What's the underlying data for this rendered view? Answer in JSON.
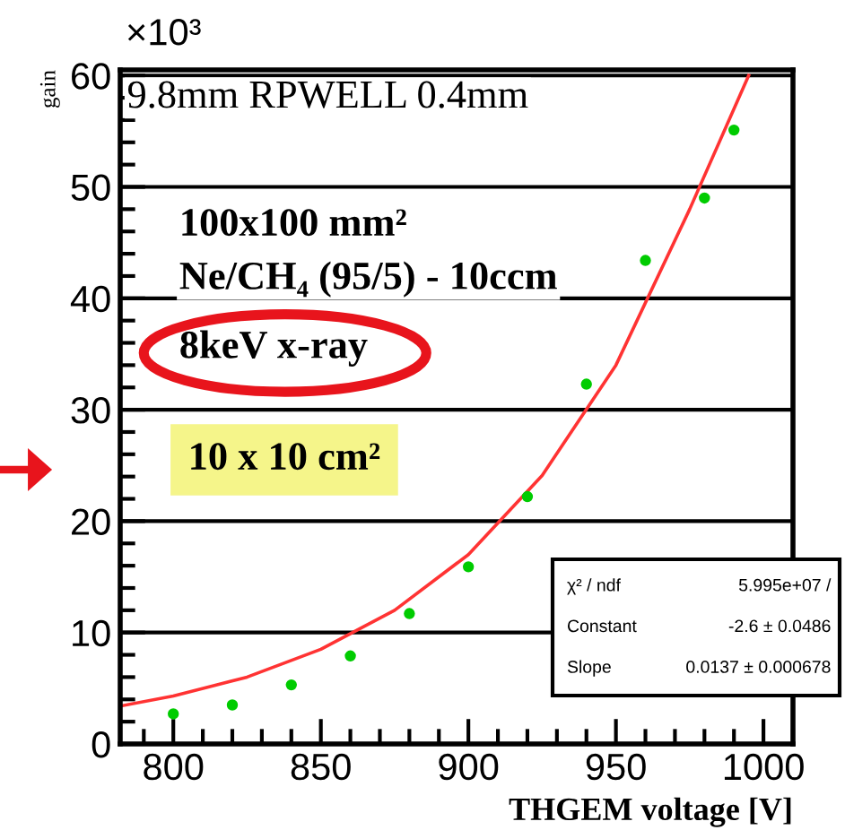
{
  "chart_data": {
    "type": "scatter",
    "title": "9.8mm RPWELL 0.4mm",
    "xlabel": "THGEM voltage [V]",
    "ylabel": "gain",
    "xlim": [
      782,
      1010
    ],
    "xticks": [
      800,
      850,
      900,
      950,
      1000
    ],
    "ylim": [
      0,
      60.5
    ],
    "yticks": [
      0,
      10,
      20,
      30,
      40,
      50,
      60
    ],
    "grid": "y",
    "marker": "circle",
    "series": [
      {
        "color": "#00cc00",
        "x": [
          800,
          820,
          840,
          860,
          880,
          900,
          920,
          940,
          960,
          980,
          990
        ],
        "values": [
          2.7,
          3.5,
          5.3,
          7.9,
          11.7,
          15.9,
          22.2,
          32.3,
          43.4,
          49.0,
          55.1
        ]
      },
      {
        "type": "line",
        "marker": "none",
        "color": "#ff3333",
        "line_style": "solid",
        "x": [
          782,
          800,
          825,
          850,
          875,
          900,
          925,
          950,
          975,
          995
        ],
        "values": [
          3.4,
          4.3,
          6.0,
          8.5,
          12.0,
          17.0,
          24.1,
          34.0,
          48.0,
          60.0
        ]
      }
    ],
    "annotations": [
      "×10³",
      "100x100 mm²",
      "Ne/CH₄ (95/5) - 10ccm",
      "8keV x-ray",
      "10 x 10 cm²",
      "χ² / ndf",
      "5.995e+07 /",
      "Constant",
      "-2.6 ± 0.0486",
      "Slope",
      "0.0137 ± 0.000678"
    ]
  }
}
